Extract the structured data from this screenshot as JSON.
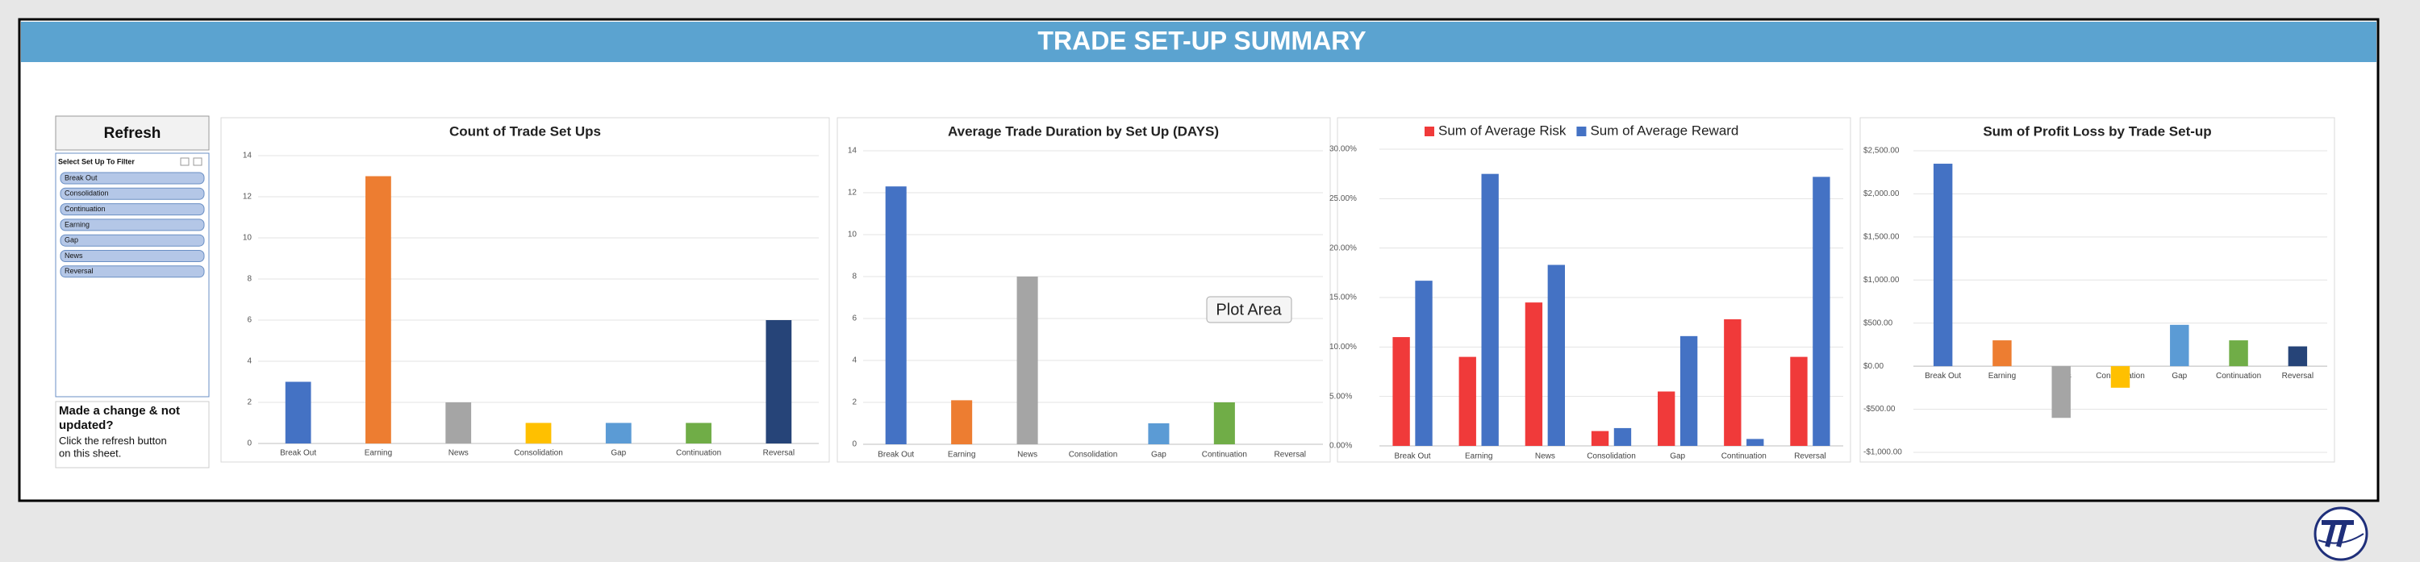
{
  "header": {
    "title": "TRADE SET-UP SUMMARY"
  },
  "refresh_button": "Refresh",
  "slicer": {
    "title": "Select Set Up To Filter",
    "items": [
      "Break Out",
      "Consolidation",
      "Continuation",
      "Earning",
      "Gap",
      "News",
      "Reversal"
    ]
  },
  "note": {
    "heading": "Made a change & not updated?",
    "text": "Click the refresh button on this sheet."
  },
  "tooltip": "Plot Area",
  "chart_data": [
    {
      "type": "bar",
      "title": "Count of Trade Set Ups",
      "categories": [
        "Break Out",
        "Earning",
        "News",
        "Consolidation",
        "Gap",
        "Continuation",
        "Reversal"
      ],
      "values": [
        3,
        13,
        2,
        1,
        1,
        1,
        6
      ],
      "colors": [
        "#4472c4",
        "#ed7d31",
        "#a5a5a5",
        "#ffc000",
        "#5b9bd5",
        "#70ad47",
        "#264478"
      ],
      "ylim": [
        0,
        14
      ],
      "yticks": [
        0,
        2,
        4,
        6,
        8,
        10,
        12,
        14
      ],
      "grid": true
    },
    {
      "type": "bar",
      "title": "Average Trade Duration by Set Up (DAYS)",
      "categories": [
        "Break Out",
        "Earning",
        "News",
        "Consolidation",
        "Gap",
        "Continuation",
        "Reversal"
      ],
      "values": [
        12.3,
        2.1,
        8,
        0,
        1,
        2,
        0
      ],
      "colors": [
        "#4472c4",
        "#ed7d31",
        "#a5a5a5",
        "#ffc000",
        "#5b9bd5",
        "#70ad47",
        "#264478"
      ],
      "ylim": [
        0,
        14
      ],
      "yticks": [
        0,
        2,
        4,
        6,
        8,
        10,
        12,
        14
      ],
      "grid": true
    },
    {
      "type": "grouped_bar",
      "categories": [
        "Break Out",
        "Earning",
        "News",
        "Consolidation",
        "Gap",
        "Continuation",
        "Reversal"
      ],
      "series": [
        {
          "name": "Sum of Average Risk",
          "color": "#f03a3a",
          "values": [
            11,
            9,
            14.5,
            1.5,
            5.5,
            12.8,
            9
          ]
        },
        {
          "name": "Sum of Average Reward",
          "color": "#4472c4",
          "values": [
            16.7,
            27.5,
            18.3,
            1.8,
            11.1,
            0.7,
            27.2
          ]
        }
      ],
      "ylim": [
        0,
        30
      ],
      "yticks": [
        {
          "value": 0,
          "label": "0.00%"
        },
        {
          "value": 5,
          "label": "5.00%"
        },
        {
          "value": 10,
          "label": "10.00%"
        },
        {
          "value": 15,
          "label": "15.00%"
        },
        {
          "value": 20,
          "label": "20.00%"
        },
        {
          "value": 25,
          "label": "25.00%"
        },
        {
          "value": 30,
          "label": "30.00%"
        }
      ],
      "grid": true,
      "legend": "top"
    },
    {
      "type": "bar",
      "title": "Sum of Profit Loss by Trade Set-up",
      "categories": [
        "Break Out",
        "Earning",
        "News",
        "Consolidation",
        "Gap",
        "Continuation",
        "Reversal"
      ],
      "values": [
        2350,
        300,
        -600,
        -250,
        480,
        300,
        230
      ],
      "colors": [
        "#4472c4",
        "#ed7d31",
        "#a5a5a5",
        "#ffc000",
        "#5b9bd5",
        "#70ad47",
        "#264478"
      ],
      "ylim": [
        -1000,
        2500
      ],
      "yticks": [
        {
          "value": -1000,
          "label": "-$1,000.00"
        },
        {
          "value": -500,
          "label": "-$500.00"
        },
        {
          "value": 0,
          "label": "$0.00"
        },
        {
          "value": 500,
          "label": "$500.00"
        },
        {
          "value": 1000,
          "label": "$1,000.00"
        },
        {
          "value": 1500,
          "label": "$1,500.00"
        },
        {
          "value": 2000,
          "label": "$2,000.00"
        },
        {
          "value": 2500,
          "label": "$2,500.00"
        }
      ],
      "grid": true
    }
  ]
}
